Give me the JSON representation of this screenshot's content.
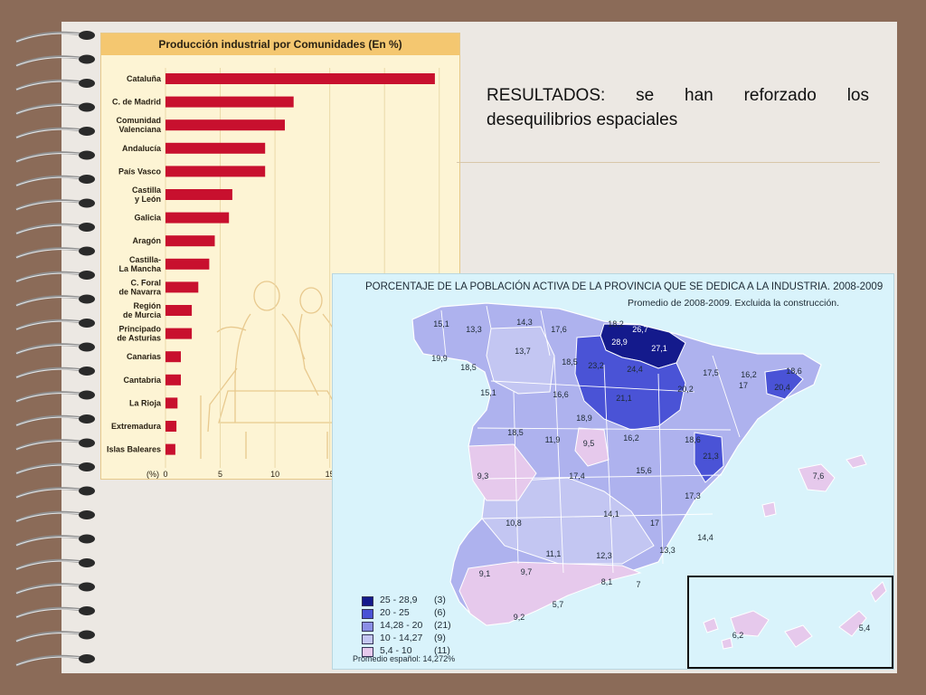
{
  "slide": {
    "result_text": "RESULTADOS: se han reforzado los desequilibrios espaciales"
  },
  "chart_data": [
    {
      "type": "bar",
      "orientation": "horizontal",
      "title": "Producción industrial por Comunidades (En %)",
      "axis_unit_label": "(%)",
      "categories": [
        "Cataluña",
        "C. de Madrid",
        "Comunidad Valenciana",
        "Andalucía",
        "País Vasco",
        "Castilla y León",
        "Galicia",
        "Aragón",
        "Castilla-La Mancha",
        "C. Foral de Navarra",
        "Región de Murcia",
        "Principado de Asturias",
        "Canarias",
        "Cantabria",
        "La Rioja",
        "Extremadura",
        "Islas Baleares"
      ],
      "values": [
        24.6,
        11.7,
        10.9,
        9.1,
        9.1,
        6.1,
        5.8,
        4.5,
        4.0,
        3.0,
        2.4,
        2.4,
        1.4,
        1.4,
        1.1,
        1.0,
        0.9
      ],
      "xticks": [
        "0",
        "5",
        "10",
        "15"
      ],
      "xlim": [
        0,
        25
      ],
      "bar_color": "#c8102e",
      "grid": true
    },
    {
      "type": "choropleth",
      "title": "PORCENTAJE DE LA POBLACIÓN ACTIVA DE LA PROVINCIA QUE SE DEDICA A LA INDUSTRIA. 2008-2009",
      "subtitle": "Promedio de 2008-2009. Excluida la construcción.",
      "province_values": [
        "15,1",
        "14,3",
        "13,3",
        "13,7",
        "17,6",
        "18,2",
        "26,7",
        "28,9",
        "27,1",
        "19,9",
        "18,5",
        "18,5",
        "23,2",
        "24,4",
        "17,5",
        "16,2",
        "18,6",
        "20,4",
        "15,1",
        "16,6",
        "21,1",
        "20,2",
        "18,9",
        "18,5",
        "11,9",
        "9,5",
        "16,2",
        "18,6",
        "21,3",
        "17,4",
        "15,6",
        "9,3",
        "14,1",
        "17,3",
        "10,8",
        "17",
        "14,4",
        "13,3",
        "11,1",
        "12,3",
        "9,1",
        "9,7",
        "8,1",
        "7",
        "5,7",
        "9,2",
        "7,6",
        "6,2",
        "5,4",
        "17"
      ],
      "legend": [
        {
          "range": "25   - 28,9",
          "count": "(3)",
          "color": "#141a8c"
        },
        {
          "range": "20   - 25",
          "count": "(6)",
          "color": "#4a53d6"
        },
        {
          "range": "14,28 - 20",
          "count": "(21)",
          "color": "#8a8fe6"
        },
        {
          "range": "10   - 14,27",
          "count": "(9)",
          "color": "#c3c6f2"
        },
        {
          "range": "5,4  - 10",
          "count": "(11)",
          "color": "#e6c9ec"
        }
      ],
      "note": "Promedio español: 14,272%"
    }
  ]
}
